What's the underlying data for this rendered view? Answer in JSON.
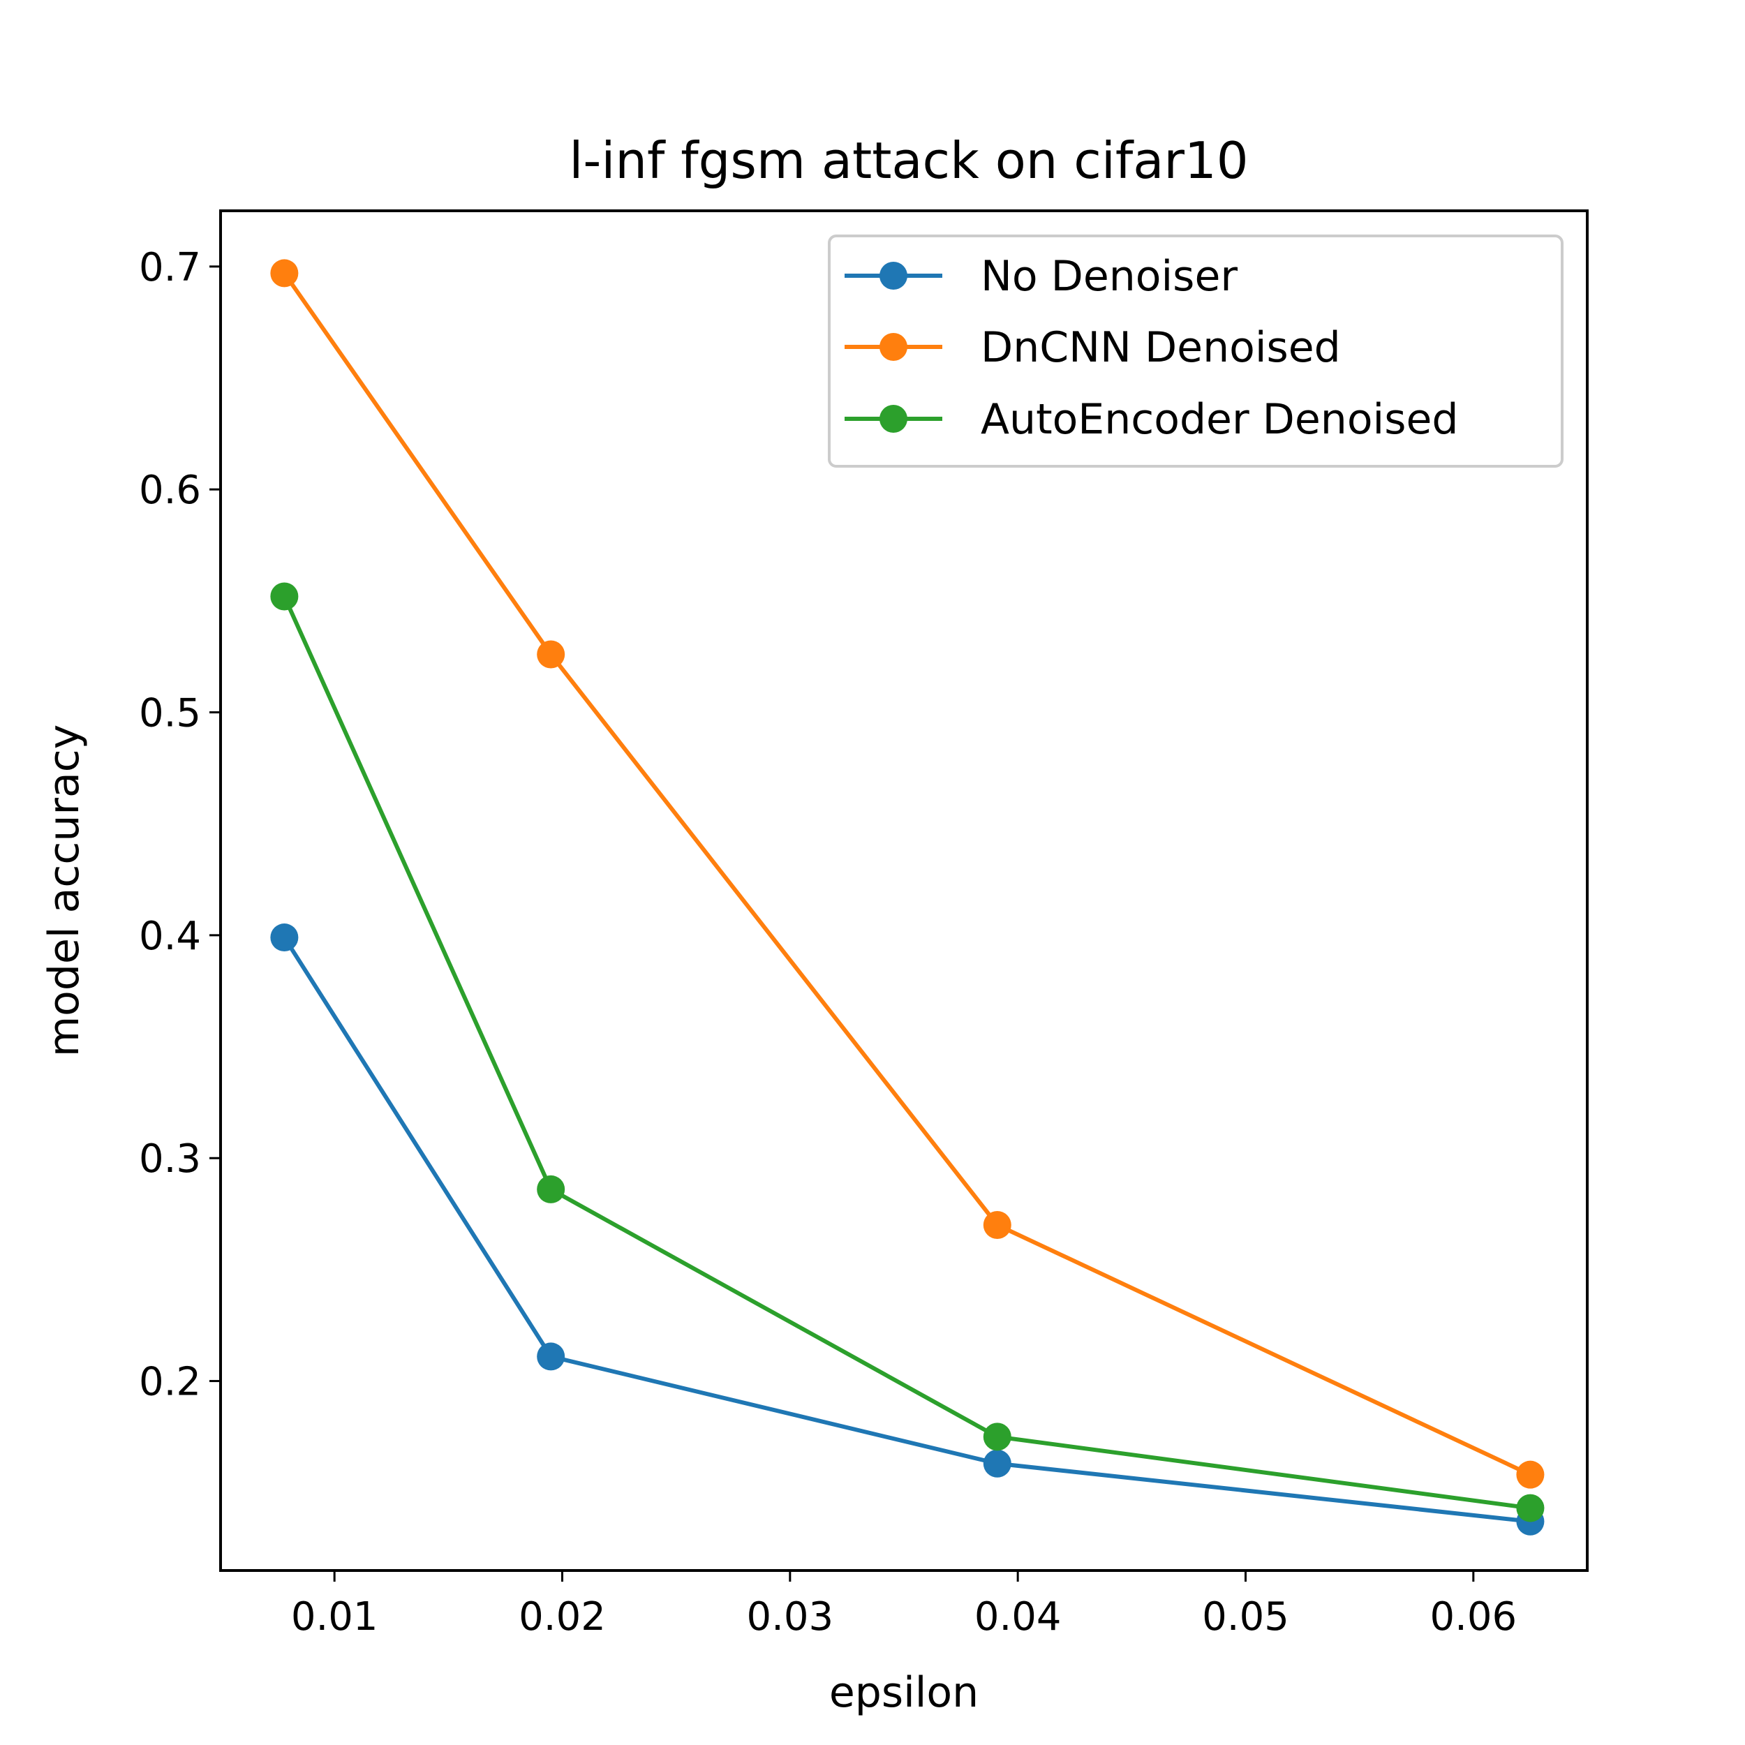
{
  "chart_data": {
    "type": "line",
    "title": "l-inf fgsm attack on cifar10",
    "xlabel": "epsilon",
    "ylabel": "model accuracy",
    "x": [
      0.0078,
      0.0195,
      0.0391,
      0.0625
    ],
    "xlim": [
      0.005,
      0.065
    ],
    "ylim": [
      0.115,
      0.725
    ],
    "xticks": [
      0.01,
      0.02,
      0.03,
      0.04,
      0.05,
      0.06
    ],
    "xtick_labels": [
      "0.01",
      "0.02",
      "0.03",
      "0.04",
      "0.05",
      "0.06"
    ],
    "yticks": [
      0.2,
      0.3,
      0.4,
      0.5,
      0.6,
      0.7
    ],
    "ytick_labels": [
      "0.2",
      "0.3",
      "0.4",
      "0.5",
      "0.6",
      "0.7"
    ],
    "grid": false,
    "legend_position": "top-right",
    "series": [
      {
        "name": "No Denoiser",
        "color": "#1f77b4",
        "values": [
          0.399,
          0.211,
          0.163,
          0.137
        ]
      },
      {
        "name": "DnCNN Denoised",
        "color": "#ff7f0e",
        "values": [
          0.697,
          0.526,
          0.27,
          0.158
        ]
      },
      {
        "name": "AutoEncoder Denoised",
        "color": "#2ca02c",
        "values": [
          0.552,
          0.286,
          0.175,
          0.143
        ]
      }
    ]
  }
}
